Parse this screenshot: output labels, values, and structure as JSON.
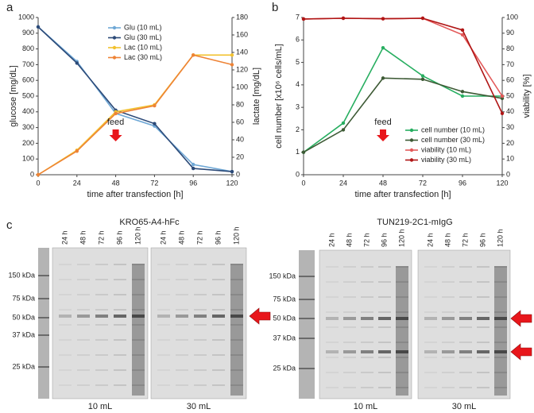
{
  "chart_data": [
    {
      "type": "line",
      "panel_label": "a",
      "xlabel": "time after transfection [h]",
      "ylabel": "glucose [mg/dL]",
      "y2label": "lactate [mg/dL]",
      "x": [
        0,
        24,
        48,
        72,
        96,
        120
      ],
      "xlim": [
        0,
        120
      ],
      "xticks": [
        0,
        24,
        48,
        72,
        96,
        120
      ],
      "ylim": [
        0,
        1000
      ],
      "yticks": [
        0,
        100,
        200,
        300,
        400,
        500,
        600,
        700,
        800,
        900,
        1000
      ],
      "y2lim": [
        0,
        180
      ],
      "y2ticks": [
        0,
        20,
        40,
        60,
        80,
        100,
        120,
        140,
        160,
        180
      ],
      "legend": "upper center",
      "series": [
        {
          "name": "Glu (10 mL)",
          "color": "#6fa8d6",
          "values": [
            940,
            720,
            390,
            310,
            65,
            20
          ]
        },
        {
          "name": "Glu (30 mL)",
          "color": "#2c4a78",
          "values": [
            940,
            710,
            410,
            325,
            40,
            20
          ]
        },
        {
          "name": "Lac (10 mL)",
          "color": "#f2c12e",
          "axis": "y2",
          "values": [
            0,
            28,
            72,
            80,
            137,
            137
          ]
        },
        {
          "name": "Lac (30 mL)",
          "color": "#ee8336",
          "axis": "y2",
          "values": [
            0,
            27,
            70,
            79,
            137,
            126
          ]
        }
      ],
      "annotations": [
        {
          "text": "feed",
          "x": 48
        }
      ]
    },
    {
      "type": "line",
      "panel_label": "b",
      "xlabel": "time after transfection [h]",
      "ylabel": "cell number [x10⁶ cells/mL]",
      "y2label": "viability [%]",
      "x": [
        0,
        24,
        48,
        72,
        96,
        120
      ],
      "xlim": [
        0,
        120
      ],
      "xticks": [
        0,
        24,
        48,
        72,
        96,
        120
      ],
      "ylim": [
        0,
        7
      ],
      "yticks": [
        0,
        1,
        2,
        3,
        4,
        5,
        6,
        7
      ],
      "y2lim": [
        0,
        100
      ],
      "y2ticks": [
        0,
        10,
        20,
        30,
        40,
        50,
        60,
        70,
        80,
        90,
        100
      ],
      "legend": "lower right",
      "series": [
        {
          "name": "cell number (10 mL)",
          "color": "#27ae60",
          "values": [
            1,
            2.3,
            5.65,
            4.4,
            3.5,
            3.5
          ]
        },
        {
          "name": "cell number (30 mL)",
          "color": "#3d5a35",
          "values": [
            1,
            2,
            4.3,
            4.25,
            3.7,
            3.4
          ]
        },
        {
          "name": "viability (10 mL)",
          "color": "#e35a5a",
          "axis": "y2",
          "values": [
            99,
            99.5,
            99.2,
            99.5,
            89,
            50
          ]
        },
        {
          "name": "viability (30 mL)",
          "color": "#b01515",
          "axis": "y2",
          "values": [
            99,
            99.5,
            99.2,
            99.5,
            92,
            39
          ]
        }
      ],
      "annotations": [
        {
          "text": "feed",
          "x": 48
        }
      ]
    }
  ],
  "gel_panel": {
    "panel_label": "c",
    "gels": [
      {
        "title": "KRO65-A4-hFc",
        "markers": [
          "150 kDa",
          "75 kDa",
          "50 kDa",
          "37 kDa",
          "25 kDa"
        ],
        "groups": [
          {
            "name": "10 mL",
            "lanes": [
              "24 h",
              "48 h",
              "72 h",
              "96 h",
              "120 h"
            ]
          },
          {
            "name": "30 mL",
            "lanes": [
              "24 h",
              "48 h",
              "72 h",
              "96 h",
              "120 h"
            ]
          }
        ]
      },
      {
        "title": "TUN219-2C1-mIgG",
        "markers": [
          "150 kDa",
          "75 kDa",
          "50 kDa",
          "37 kDa",
          "25 kDa"
        ],
        "groups": [
          {
            "name": "10 mL",
            "lanes": [
              "24 h",
              "48 h",
              "72 h",
              "96 h",
              "120 h"
            ]
          },
          {
            "name": "30 mL",
            "lanes": [
              "24 h",
              "48 h",
              "72 h",
              "96 h",
              "120 h"
            ]
          }
        ]
      }
    ]
  }
}
